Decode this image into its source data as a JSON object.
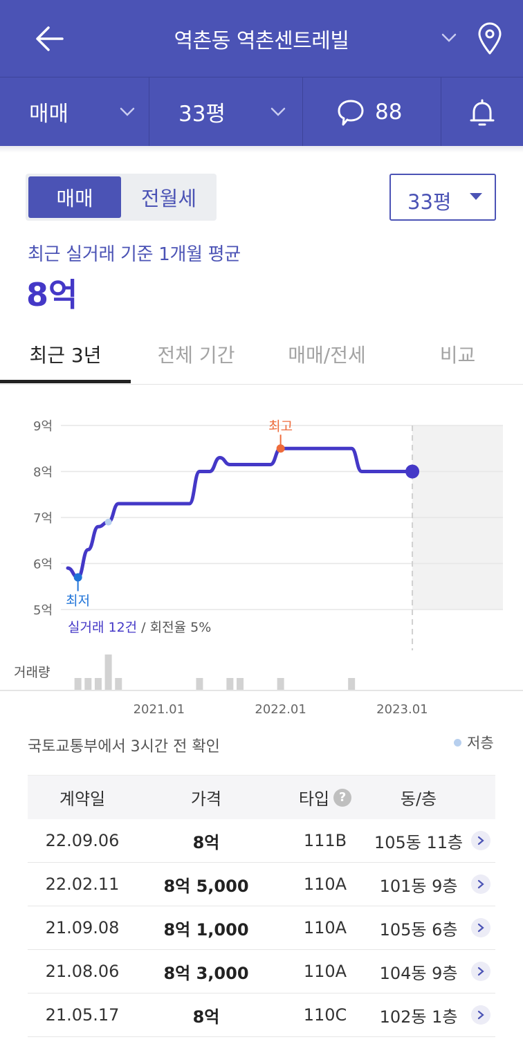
{
  "header": {
    "title": "역촌동 역촌센트레빌",
    "back_icon": "arrow-left-icon",
    "dropdown_icon": "chevron-down-icon",
    "location_icon": "map-pin-icon"
  },
  "subbar": {
    "deal_type": "매매",
    "area": "33평",
    "comments_count": "88",
    "comment_icon": "speech-bubble-icon",
    "alert_icon": "bell-icon"
  },
  "segment": {
    "options": [
      "매매",
      "전월세"
    ],
    "selected": "매매"
  },
  "area_select": {
    "value": "33평"
  },
  "summary": {
    "label": "최근 실거래 기준 1개월 평균",
    "value": "8억"
  },
  "tabs": [
    {
      "label": "최근 3년",
      "active": true
    },
    {
      "label": "전체 기간",
      "active": false
    },
    {
      "label": "매매/전세",
      "active": false
    },
    {
      "label": "비교",
      "active": false
    }
  ],
  "chart_data": {
    "type": "line",
    "x_ticks": [
      "2021.01",
      "2022.01",
      "2023.01"
    ],
    "y_ticks": [
      "9억",
      "8억",
      "7억",
      "6억",
      "5억"
    ],
    "ylim": [
      5,
      9
    ],
    "y_unit": "억",
    "xlim": [
      "2020.04",
      "2023.05"
    ],
    "series": [
      {
        "points": [
          {
            "x": "2020.04",
            "y": 5.9
          },
          {
            "x": "2020.05",
            "y": 5.7
          },
          {
            "x": "2020.06",
            "y": 6.3
          },
          {
            "x": "2020.07",
            "y": 6.8
          },
          {
            "x": "2020.08",
            "y": 6.9
          },
          {
            "x": "2020.09",
            "y": 7.3
          },
          {
            "x": "2021.02",
            "y": 7.3
          },
          {
            "x": "2021.04",
            "y": 7.3
          },
          {
            "x": "2021.05",
            "y": 8.0
          },
          {
            "x": "2021.06",
            "y": 8.0
          },
          {
            "x": "2021.07",
            "y": 8.3
          },
          {
            "x": "2021.08",
            "y": 8.15
          },
          {
            "x": "2021.09",
            "y": 8.15
          },
          {
            "x": "2021.12",
            "y": 8.15
          },
          {
            "x": "2022.01",
            "y": 8.5
          },
          {
            "x": "2022.02",
            "y": 8.5
          },
          {
            "x": "2022.08",
            "y": 8.5
          },
          {
            "x": "2022.09",
            "y": 8.0
          },
          {
            "x": "2023.02",
            "y": 8.0
          }
        ]
      }
    ],
    "low_floor_points": [
      {
        "x": "2020.08",
        "y": 6.9
      }
    ],
    "annotations": {
      "high_label": "최고",
      "high": {
        "x": "2022.01",
        "y": 8.5
      },
      "low_label": "최저",
      "low": {
        "x": "2020.05",
        "y": 5.7
      },
      "current": {
        "x": "2023.02",
        "y": 8.0
      }
    },
    "volume": {
      "label": "거래량",
      "bars": [
        {
          "x": "2020.05",
          "v": 1
        },
        {
          "x": "2020.06",
          "v": 1
        },
        {
          "x": "2020.07",
          "v": 1
        },
        {
          "x": "2020.08",
          "v": 3
        },
        {
          "x": "2020.09",
          "v": 1
        },
        {
          "x": "2021.05",
          "v": 1
        },
        {
          "x": "2021.08",
          "v": 1
        },
        {
          "x": "2021.09",
          "v": 1
        },
        {
          "x": "2022.01",
          "v": 1
        },
        {
          "x": "2022.08",
          "v": 1
        }
      ]
    },
    "stats": {
      "deals_label": "실거래 12건",
      "separator": " / ",
      "turnover_label": "회전율 5%"
    },
    "grid": true
  },
  "source_note": "국토교통부에서 3시간 전 확인",
  "legend_low_floor": "저층",
  "table": {
    "headers": [
      "계약일",
      "가격",
      "타입",
      "동/층"
    ],
    "help_icon": "?",
    "rows": [
      {
        "date": "22.09.06",
        "price": "8억",
        "type": "111B",
        "unit": "105동 11층"
      },
      {
        "date": "22.02.11",
        "price": "8억 5,000",
        "type": "110A",
        "unit": "101동 9층"
      },
      {
        "date": "21.09.08",
        "price": "8억 1,000",
        "type": "110A",
        "unit": "105동 6층"
      },
      {
        "date": "21.08.06",
        "price": "8억 3,000",
        "type": "110A",
        "unit": "104동 9층"
      },
      {
        "date": "21.05.17",
        "price": "8억",
        "type": "110C",
        "unit": "102동 1층"
      }
    ]
  }
}
